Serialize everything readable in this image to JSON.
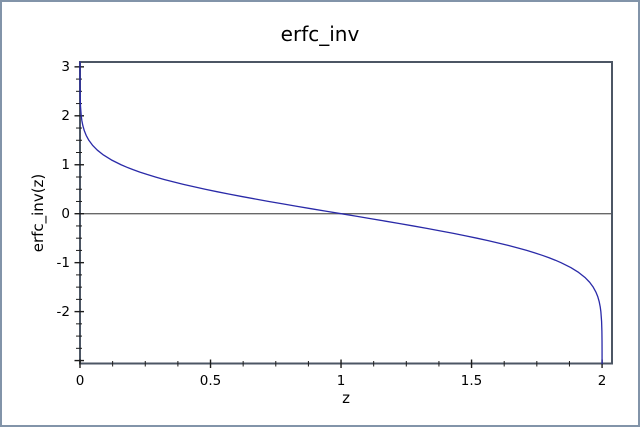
{
  "window": {
    "background": "#ffffff",
    "border_color": "#8294a9"
  },
  "chart_data": {
    "type": "line",
    "title": "erfc_inv",
    "xlabel": "z",
    "ylabel": "erfc_inv(z)",
    "x_range": [
      0,
      2.038
    ],
    "y_range": [
      -3.06,
      3.099
    ],
    "x_ticks": [
      {
        "value": 0,
        "label": "0"
      },
      {
        "value": 0.5,
        "label": "0.5"
      },
      {
        "value": 1,
        "label": "1"
      },
      {
        "value": 1.5,
        "label": "1.5"
      },
      {
        "value": 2,
        "label": "2"
      }
    ],
    "y_ticks": [
      {
        "value": 3,
        "label": "3"
      },
      {
        "value": 2,
        "label": "2"
      },
      {
        "value": 1,
        "label": "1"
      },
      {
        "value": 0,
        "label": "0"
      },
      {
        "value": -1,
        "label": "-1"
      },
      {
        "value": -2,
        "label": "-2"
      },
      {
        "value": -3,
        "label": ""
      }
    ],
    "x_minor_step": 0.125,
    "y_minor_step": 0.25,
    "grid": false,
    "legend": "none",
    "zero_line_y": 0,
    "frame_color": "#4c5664",
    "zero_line_color": "#686868",
    "tick_color": "#1c1c1c",
    "text_color": "#000000",
    "series": [
      {
        "name": "erfc_inv",
        "color": "#2a2aa8",
        "points": [
          [
            1.2e-05,
            3.098
          ],
          [
            2.2e-05,
            3.0
          ],
          [
            7.5e-05,
            2.8
          ],
          [
            0.000236,
            2.6
          ],
          [
            0.000689,
            2.4
          ],
          [
            0.00186,
            2.2
          ],
          [
            0.00468,
            2.0
          ],
          [
            0.00721,
            1.9
          ],
          [
            0.0109,
            1.8
          ],
          [
            0.0162,
            1.7
          ],
          [
            0.0237,
            1.6
          ],
          [
            0.0339,
            1.5
          ],
          [
            0.0477,
            1.4
          ],
          [
            0.066,
            1.3
          ],
          [
            0.0897,
            1.2
          ],
          [
            0.1198,
            1.1
          ],
          [
            0.1573,
            1.0
          ],
          [
            0.1791,
            0.95
          ],
          [
            0.2031,
            0.9
          ],
          [
            0.2293,
            0.85
          ],
          [
            0.2579,
            0.8
          ],
          [
            0.2888,
            0.75
          ],
          [
            0.3222,
            0.7
          ],
          [
            0.358,
            0.65
          ],
          [
            0.3961,
            0.6
          ],
          [
            0.4367,
            0.55
          ],
          [
            0.4795,
            0.5
          ],
          [
            0.5245,
            0.45
          ],
          [
            0.5716,
            0.4
          ],
          [
            0.6206,
            0.35
          ],
          [
            0.6714,
            0.3
          ],
          [
            0.7237,
            0.25
          ],
          [
            0.7773,
            0.2
          ],
          [
            0.832,
            0.15
          ],
          [
            0.8875,
            0.1
          ],
          [
            0.9436,
            0.05
          ],
          [
            1.0,
            0.0
          ],
          [
            1.0564,
            -0.05
          ],
          [
            1.1125,
            -0.1
          ],
          [
            1.168,
            -0.15
          ],
          [
            1.2227,
            -0.2
          ],
          [
            1.2763,
            -0.25
          ],
          [
            1.3286,
            -0.3
          ],
          [
            1.3794,
            -0.35
          ],
          [
            1.4284,
            -0.4
          ],
          [
            1.4755,
            -0.45
          ],
          [
            1.5205,
            -0.5
          ],
          [
            1.5633,
            -0.55
          ],
          [
            1.6039,
            -0.6
          ],
          [
            1.642,
            -0.65
          ],
          [
            1.6778,
            -0.7
          ],
          [
            1.7112,
            -0.75
          ],
          [
            1.7421,
            -0.8
          ],
          [
            1.7707,
            -0.85
          ],
          [
            1.7969,
            -0.9
          ],
          [
            1.8209,
            -0.95
          ],
          [
            1.8427,
            -1.0
          ],
          [
            1.8802,
            -1.1
          ],
          [
            1.9103,
            -1.2
          ],
          [
            1.934,
            -1.3
          ],
          [
            1.9523,
            -1.4
          ],
          [
            1.9661,
            -1.5
          ],
          [
            1.9763,
            -1.6
          ],
          [
            1.9838,
            -1.7
          ],
          [
            1.9891,
            -1.8
          ],
          [
            1.9928,
            -1.9
          ],
          [
            1.99532,
            -2.0
          ],
          [
            1.99814,
            -2.2
          ],
          [
            1.99931,
            -2.4
          ],
          [
            1.999764,
            -2.6
          ],
          [
            1.999925,
            -2.8
          ],
          [
            1.999978,
            -3.0
          ],
          [
            1.999988,
            -3.059
          ]
        ]
      }
    ]
  }
}
